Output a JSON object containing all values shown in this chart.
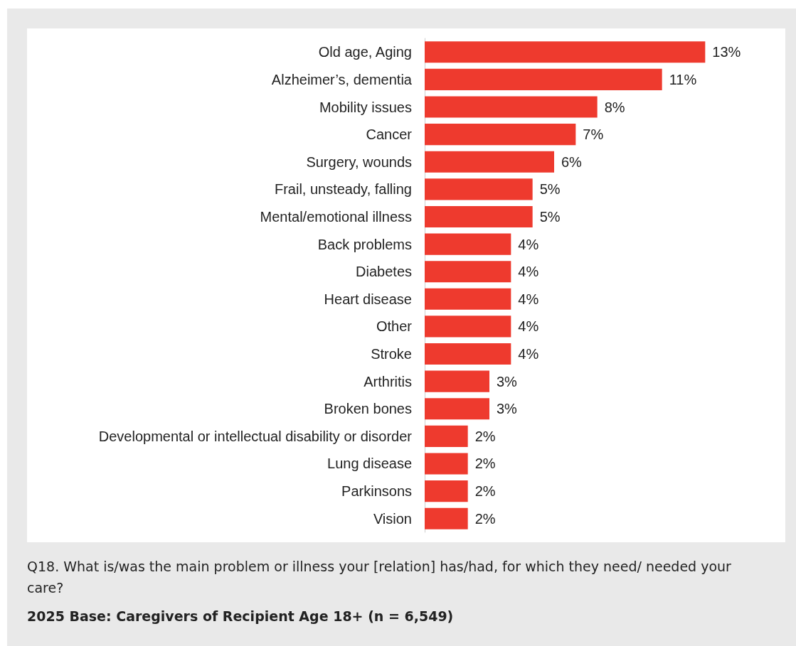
{
  "chart_data": {
    "type": "bar",
    "orientation": "horizontal",
    "categories": [
      "Old age, Aging",
      "Alzheimer’s, dementia",
      "Mobility issues",
      "Cancer",
      "Surgery, wounds",
      "Frail, unsteady, falling",
      "Mental/emotional illness",
      "Back problems",
      "Diabetes",
      "Heart disease",
      "Other",
      "Stroke",
      "Arthritis",
      "Broken bones",
      "Developmental or intellectual disability or disorder",
      "Lung disease",
      "Parkinsons",
      "Vision"
    ],
    "values": [
      13,
      11,
      8,
      7,
      6,
      5,
      5,
      4,
      4,
      4,
      4,
      4,
      3,
      3,
      2,
      2,
      2,
      2
    ],
    "value_labels": [
      "13%",
      "11%",
      "8%",
      "7%",
      "6%",
      "5%",
      "5%",
      "4%",
      "4%",
      "4%",
      "4%",
      "4%",
      "3%",
      "3%",
      "2%",
      "2%",
      "2%",
      "2%"
    ],
    "color": "#ee3a2e",
    "grid": false,
    "annotations": [
      "Q18. What is/was the main problem or illness your [relation] has/had, for which they need/ needed your care?",
      "2025 Base: Caregivers of Recipient Age 18+ (n = 6,549)"
    ]
  }
}
